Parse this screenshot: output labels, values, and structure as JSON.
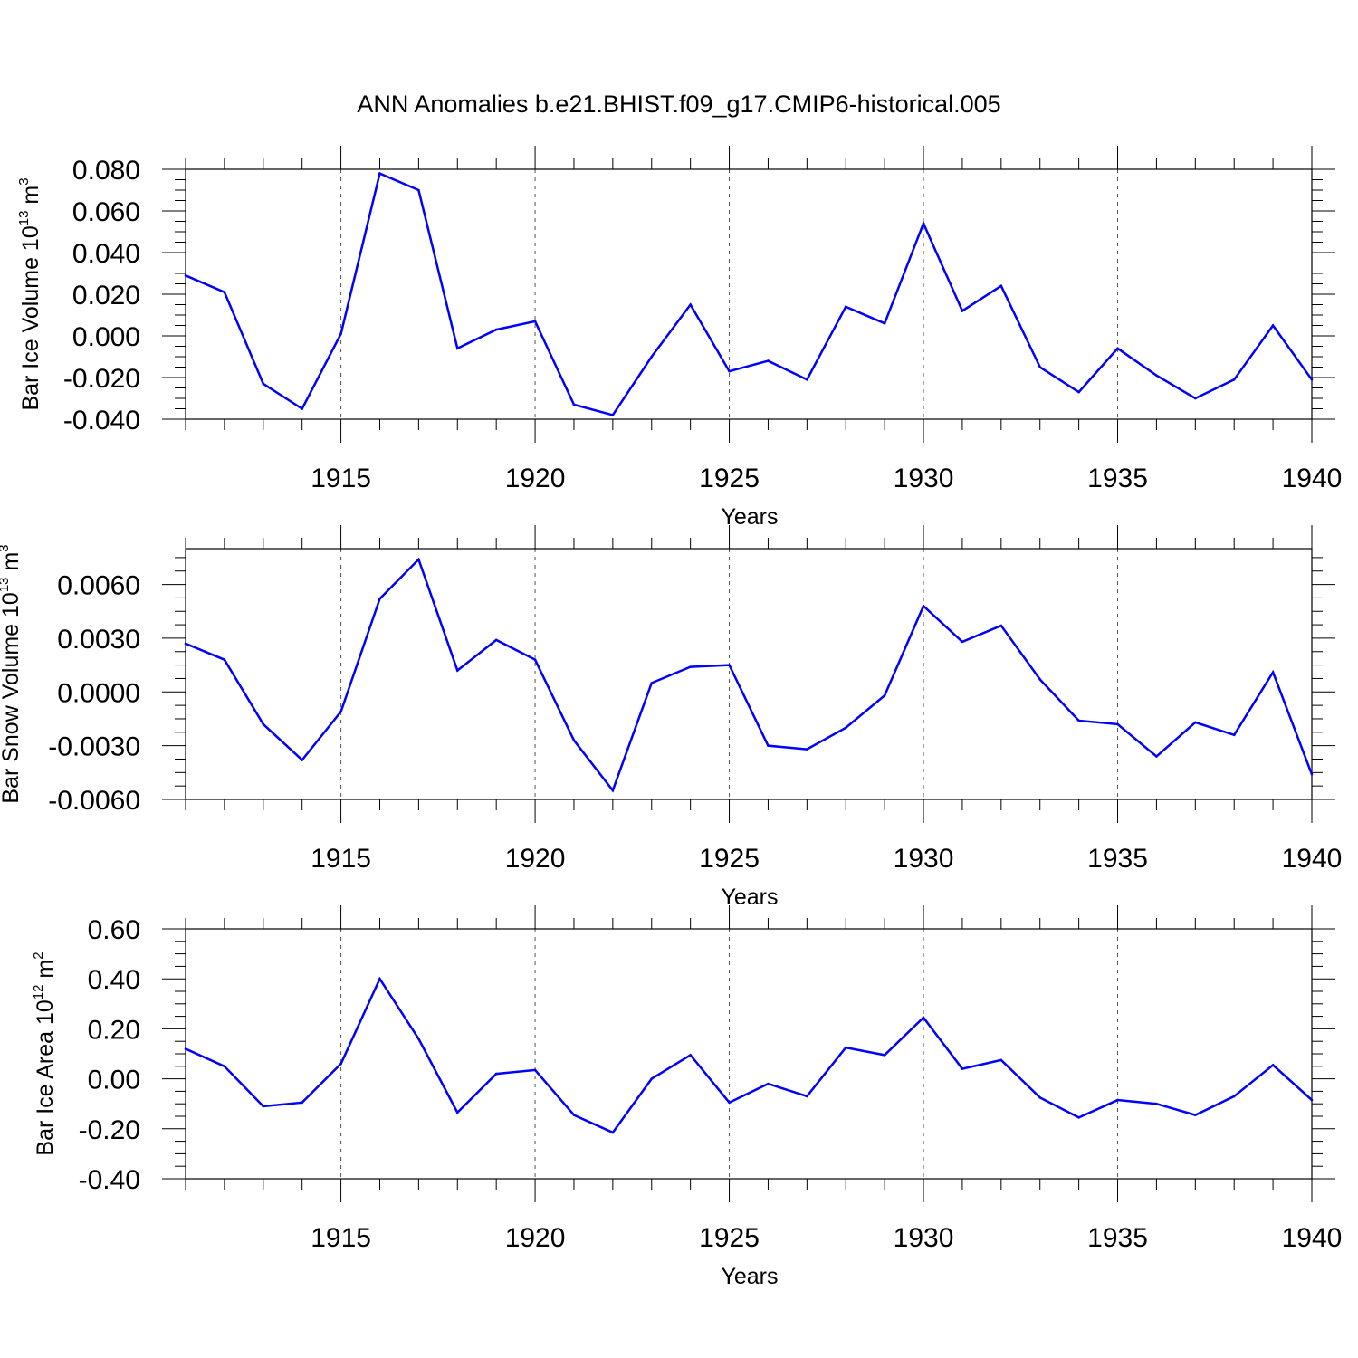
{
  "title": "ANN Anomalies b.e21.BHIST.f09_g17.CMIP6-historical.005",
  "colors": {
    "line": "#0000ff",
    "axis": "#000000",
    "grid": "#555555"
  },
  "chart_data": [
    {
      "type": "line",
      "ylabel_main": "Bar Ice Volume 10",
      "ylabel_exp": "13",
      "ylabel_unit": " m",
      "ylabel_unit_exp": "3",
      "xlabel": "Years",
      "xlim": [
        1911,
        1940
      ],
      "ylim": [
        -0.04,
        0.08
      ],
      "yticks": [
        -0.04,
        -0.02,
        0.0,
        0.02,
        0.04,
        0.06,
        0.08
      ],
      "ytick_labels": [
        "-0.040",
        "-0.020",
        "0.000",
        "0.020",
        "0.040",
        "0.060",
        "0.080"
      ],
      "xticks": [
        1915,
        1920,
        1925,
        1930,
        1935,
        1940
      ],
      "xtick_labels": [
        "1915",
        "1920",
        "1925",
        "1930",
        "1935",
        "1940"
      ],
      "x": [
        1911,
        1912,
        1913,
        1914,
        1915,
        1916,
        1917,
        1918,
        1919,
        1920,
        1921,
        1922,
        1923,
        1924,
        1925,
        1926,
        1927,
        1928,
        1929,
        1930,
        1931,
        1932,
        1933,
        1934,
        1935,
        1936,
        1937,
        1938,
        1939,
        1940
      ],
      "values": [
        0.029,
        0.021,
        -0.023,
        -0.035,
        0.001,
        0.078,
        0.07,
        -0.006,
        0.003,
        0.007,
        -0.033,
        -0.038,
        -0.01,
        0.015,
        -0.017,
        -0.012,
        -0.021,
        0.014,
        0.006,
        0.054,
        0.012,
        0.024,
        -0.015,
        -0.027,
        -0.006,
        -0.019,
        -0.03,
        -0.021,
        0.005,
        -0.021
      ]
    },
    {
      "type": "line",
      "ylabel_main": "Bar Snow Volume 10",
      "ylabel_exp": "13",
      "ylabel_unit": " m",
      "ylabel_unit_exp": "3",
      "xlabel": "Years",
      "xlim": [
        1911,
        1940
      ],
      "ylim": [
        -0.006,
        0.008
      ],
      "yticks": [
        -0.006,
        -0.003,
        0.0,
        0.003,
        0.006
      ],
      "ytick_labels": [
        "-0.0060",
        "-0.0030",
        "0.0000",
        "0.0030",
        "0.0060"
      ],
      "xticks": [
        1915,
        1920,
        1925,
        1930,
        1935,
        1940
      ],
      "xtick_labels": [
        "1915",
        "1920",
        "1925",
        "1930",
        "1935",
        "1940"
      ],
      "x": [
        1911,
        1912,
        1913,
        1914,
        1915,
        1916,
        1917,
        1918,
        1919,
        1920,
        1921,
        1922,
        1923,
        1924,
        1925,
        1926,
        1927,
        1928,
        1929,
        1930,
        1931,
        1932,
        1933,
        1934,
        1935,
        1936,
        1937,
        1938,
        1939,
        1940
      ],
      "values": [
        0.0027,
        0.0018,
        -0.0018,
        -0.0038,
        -0.0011,
        0.0052,
        0.0074,
        0.0012,
        0.0029,
        0.0018,
        -0.0027,
        -0.0055,
        0.0005,
        0.0014,
        0.0015,
        -0.003,
        -0.0032,
        -0.002,
        -0.0002,
        0.0048,
        0.0028,
        0.0037,
        0.0007,
        -0.0016,
        -0.0018,
        -0.0036,
        -0.0017,
        -0.0024,
        0.0011,
        -0.0046
      ]
    },
    {
      "type": "line",
      "ylabel_main": "Bar Ice Area 10",
      "ylabel_exp": "12",
      "ylabel_unit": " m",
      "ylabel_unit_exp": "2",
      "xlabel": "Years",
      "xlim": [
        1911,
        1940
      ],
      "ylim": [
        -0.4,
        0.6
      ],
      "yticks": [
        -0.4,
        -0.2,
        0.0,
        0.2,
        0.4,
        0.6
      ],
      "ytick_labels": [
        "-0.40",
        "-0.20",
        "0.00",
        "0.20",
        "0.40",
        "0.60"
      ],
      "xticks": [
        1915,
        1920,
        1925,
        1930,
        1935,
        1940
      ],
      "xtick_labels": [
        "1915",
        "1920",
        "1925",
        "1930",
        "1935",
        "1940"
      ],
      "x": [
        1911,
        1912,
        1913,
        1914,
        1915,
        1916,
        1917,
        1918,
        1919,
        1920,
        1921,
        1922,
        1923,
        1924,
        1925,
        1926,
        1927,
        1928,
        1929,
        1930,
        1931,
        1932,
        1933,
        1934,
        1935,
        1936,
        1937,
        1938,
        1939,
        1940
      ],
      "values": [
        0.12,
        0.05,
        -0.11,
        -0.095,
        0.06,
        0.4,
        0.16,
        -0.135,
        0.02,
        0.035,
        -0.145,
        -0.215,
        0.0,
        0.095,
        -0.095,
        -0.02,
        -0.07,
        0.125,
        0.095,
        0.245,
        0.04,
        0.075,
        -0.075,
        -0.155,
        -0.085,
        -0.1,
        -0.145,
        -0.07,
        0.055,
        -0.085
      ]
    }
  ]
}
